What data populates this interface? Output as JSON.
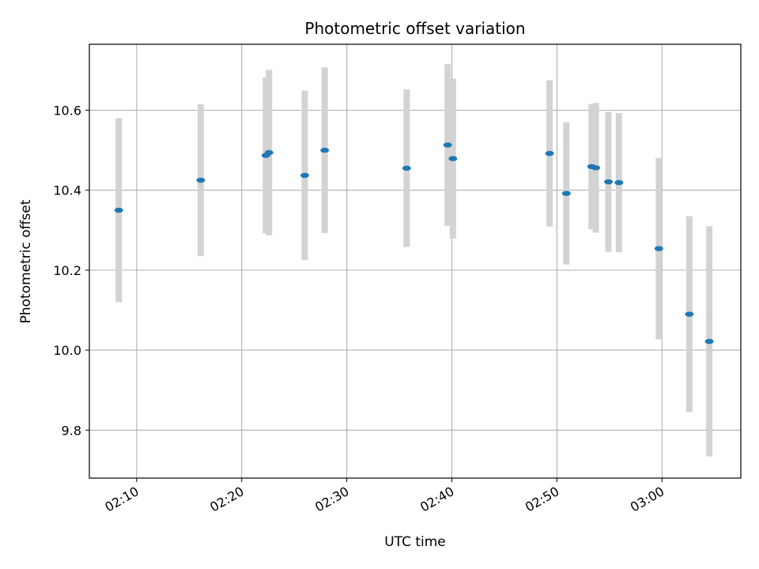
{
  "chart_data": {
    "type": "scatter",
    "title": "Photometric offset variation",
    "xlabel": "UTC time",
    "ylabel": "Photometric offset",
    "grid": true,
    "xlim_minutes": [
      125.5,
      187.5
    ],
    "ylim": [
      9.68,
      10.765
    ],
    "x_ticks": [
      {
        "minute": 130,
        "label": "02:10"
      },
      {
        "minute": 140,
        "label": "02:20"
      },
      {
        "minute": 150,
        "label": "02:30"
      },
      {
        "minute": 160,
        "label": "02:40"
      },
      {
        "minute": 170,
        "label": "02:50"
      },
      {
        "minute": 180,
        "label": "03:00"
      }
    ],
    "y_ticks": [
      {
        "value": 9.8,
        "label": "9.8"
      },
      {
        "value": 10.0,
        "label": "10.0"
      },
      {
        "value": 10.2,
        "label": "10.2"
      },
      {
        "value": 10.4,
        "label": "10.4"
      },
      {
        "value": 10.6,
        "label": "10.6"
      }
    ],
    "marker_color": "#1f77b4",
    "errorbar_color": "#d3d3d3",
    "points": [
      {
        "t": 128.3,
        "y": 10.35,
        "err": 0.23
      },
      {
        "t": 136.1,
        "y": 10.425,
        "err": 0.19
      },
      {
        "t": 142.3,
        "y": 10.487,
        "err": 0.195
      },
      {
        "t": 142.6,
        "y": 10.494,
        "err": 0.207
      },
      {
        "t": 146.0,
        "y": 10.437,
        "err": 0.212
      },
      {
        "t": 147.9,
        "y": 10.5,
        "err": 0.207
      },
      {
        "t": 155.7,
        "y": 10.455,
        "err": 0.197
      },
      {
        "t": 159.6,
        "y": 10.513,
        "err": 0.202
      },
      {
        "t": 160.1,
        "y": 10.479,
        "err": 0.2
      },
      {
        "t": 169.3,
        "y": 10.492,
        "err": 0.183
      },
      {
        "t": 170.9,
        "y": 10.392,
        "err": 0.178
      },
      {
        "t": 173.3,
        "y": 10.459,
        "err": 0.157
      },
      {
        "t": 173.7,
        "y": 10.456,
        "err": 0.162
      },
      {
        "t": 174.9,
        "y": 10.421,
        "err": 0.175
      },
      {
        "t": 175.9,
        "y": 10.419,
        "err": 0.174
      },
      {
        "t": 179.7,
        "y": 10.254,
        "err": 0.227
      },
      {
        "t": 182.6,
        "y": 10.09,
        "err": 0.245
      },
      {
        "t": 184.5,
        "y": 10.022,
        "err": 0.288
      }
    ]
  }
}
